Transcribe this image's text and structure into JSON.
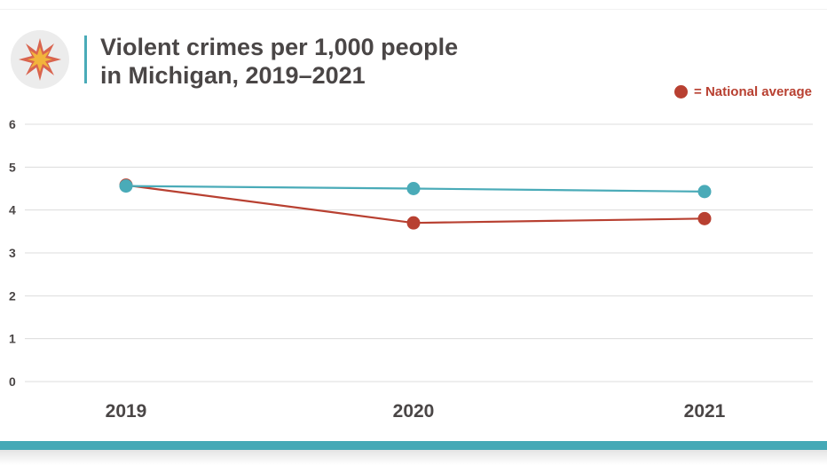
{
  "header": {
    "title_line1": "Violent crimes per 1,000 people",
    "title_line2": "in Michigan, 2019–2021",
    "logo_icon": "explosion-icon"
  },
  "legend": {
    "label": "= National average"
  },
  "colors": {
    "michigan": "#4aabb8",
    "national": "#b84031",
    "grid": "#dcdcdc",
    "text": "#4a4646",
    "bottom_bar": "#45a9b6"
  },
  "chart_data": {
    "type": "line",
    "title": "Violent crimes per 1,000 people in Michigan, 2019–2021",
    "xlabel": "",
    "ylabel": "",
    "categories": [
      "2019",
      "2020",
      "2021"
    ],
    "ylim": [
      0,
      6
    ],
    "yticks": [
      "0",
      "1",
      "2",
      "3",
      "4",
      "5",
      "6"
    ],
    "grid": true,
    "legend_position": "top-right",
    "series": [
      {
        "key": "michigan",
        "values": [
          4.56,
          4.5,
          4.43
        ]
      },
      {
        "key": "national",
        "name": "= National average",
        "values": [
          4.58,
          3.7,
          3.8
        ]
      }
    ]
  }
}
